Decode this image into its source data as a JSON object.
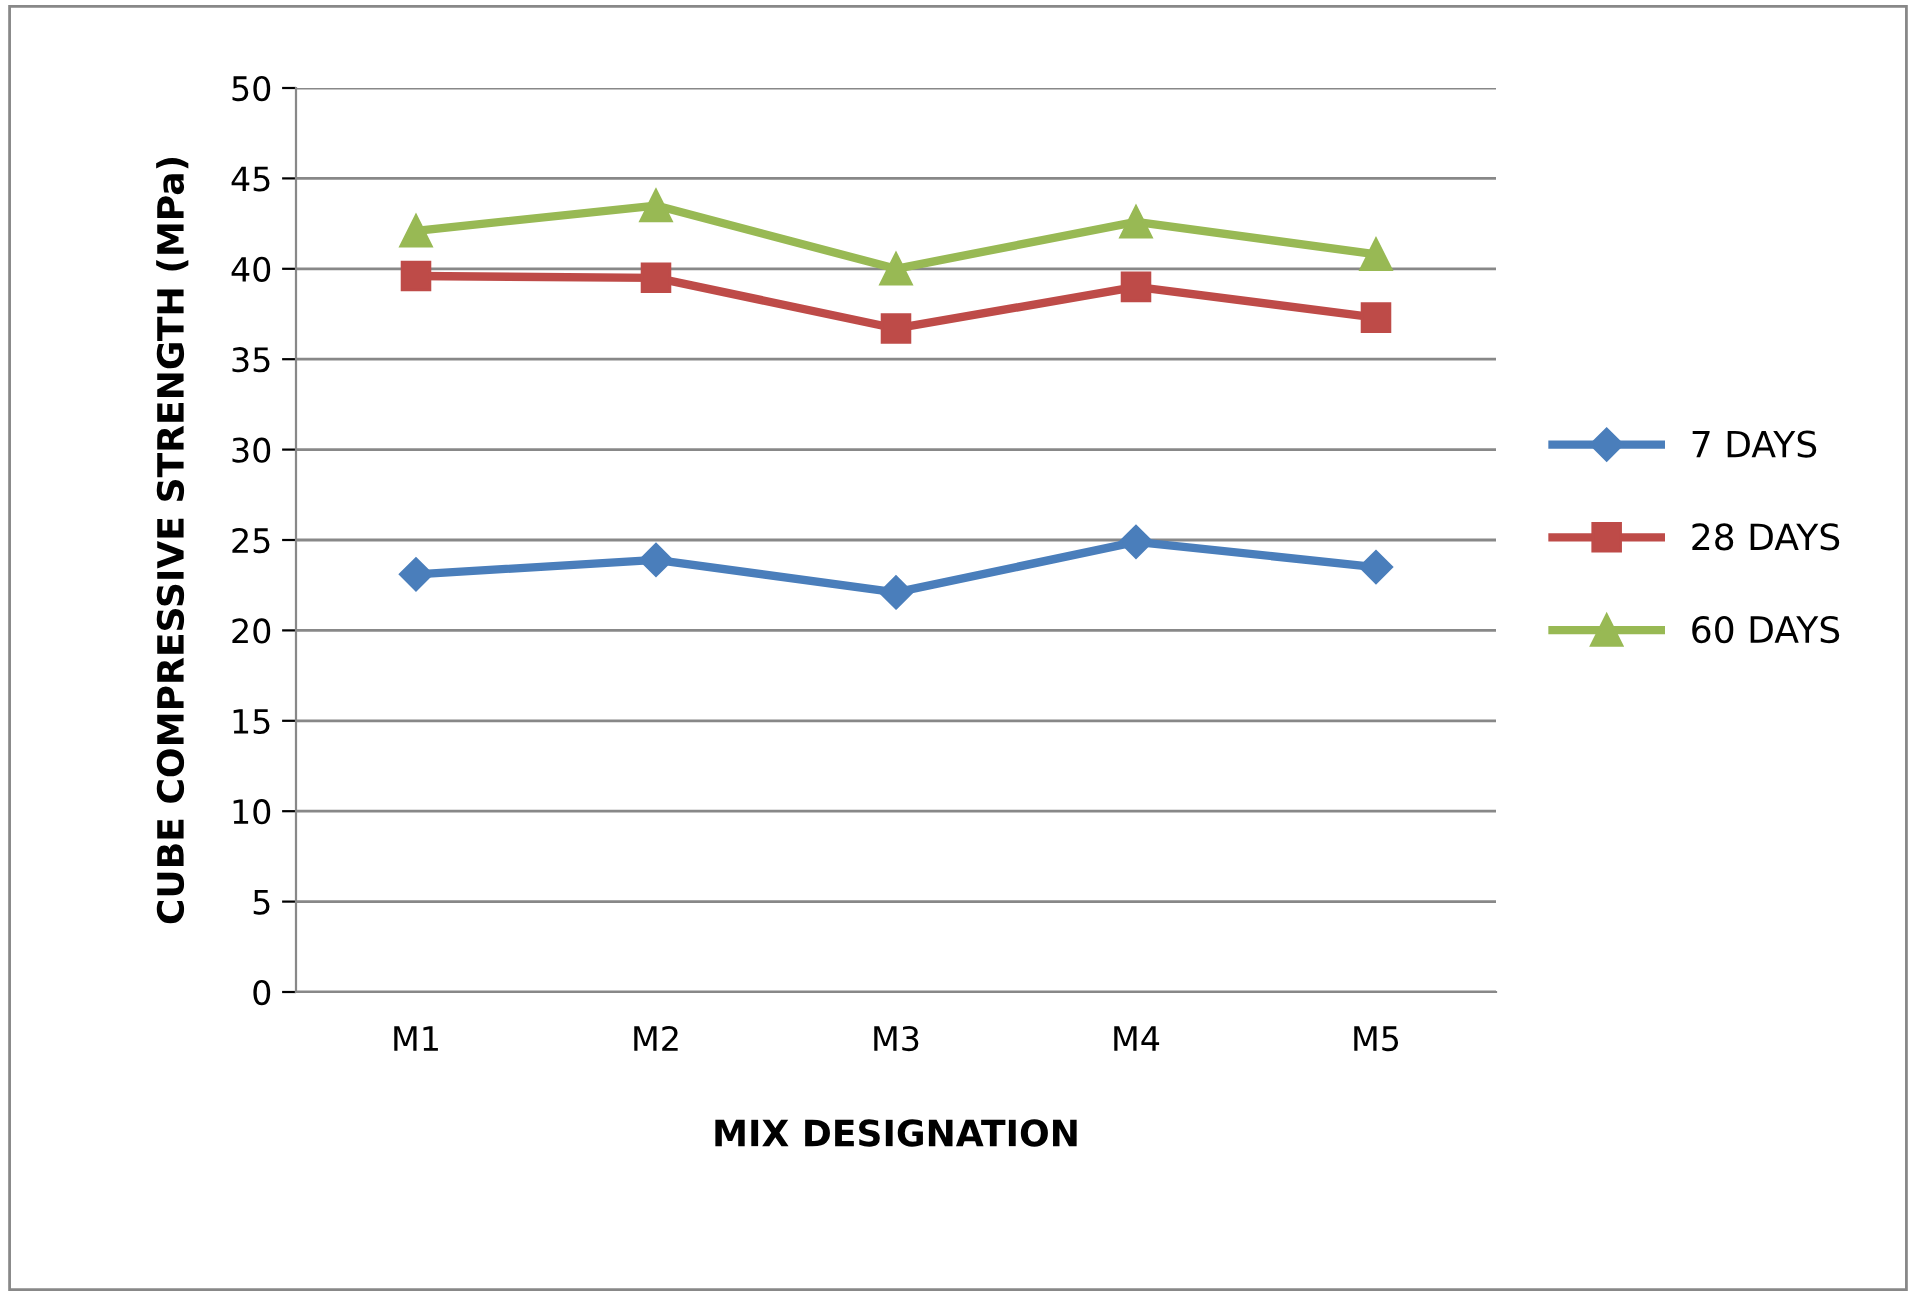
{
  "chart_data": {
    "type": "line",
    "xlabel": "MIX DESIGNATION",
    "ylabel": "CUBE COMPRESSIVE STRENGTH (MPa)",
    "categories": [
      "M1",
      "M2",
      "M3",
      "M4",
      "M5"
    ],
    "series": [
      {
        "name": "7 DAYS",
        "color": "#4a7ebb",
        "marker": "diamond",
        "values": [
          23.1,
          23.9,
          22.1,
          24.9,
          23.5
        ]
      },
      {
        "name": "28 DAYS",
        "color": "#be4b48",
        "marker": "square",
        "values": [
          39.6,
          39.5,
          36.7,
          39.0,
          37.3
        ]
      },
      {
        "name": "60 DAYS",
        "color": "#98b954",
        "marker": "triangle",
        "values": [
          42.1,
          43.5,
          40.0,
          42.6,
          40.8
        ]
      }
    ],
    "ylim": [
      0,
      50
    ],
    "yticks": [
      0,
      5,
      10,
      15,
      20,
      25,
      30,
      35,
      40,
      45,
      50
    ],
    "grid": "y",
    "legend": "right",
    "line_style": "solid"
  }
}
